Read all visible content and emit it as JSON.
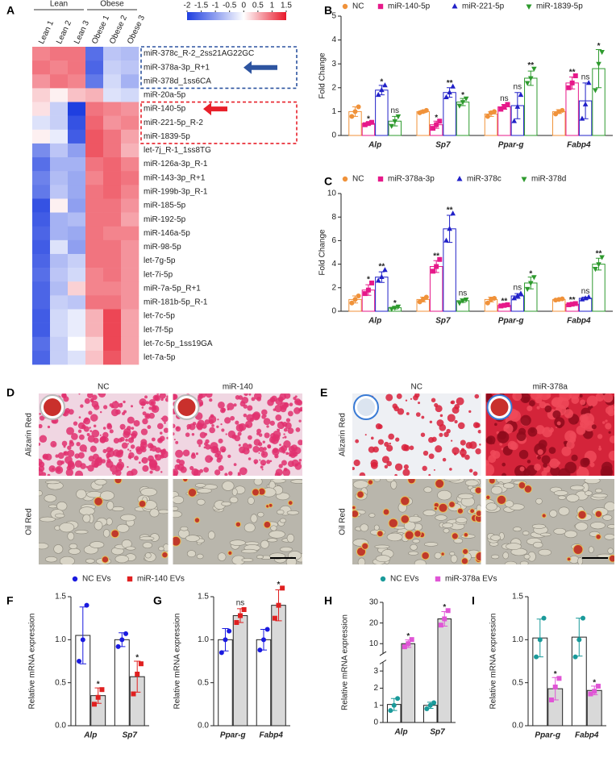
{
  "chart_data": [
    {
      "type": "heatmap",
      "panel": "A",
      "columns": [
        "Lean 1",
        "Lean 2",
        "Lean 3",
        "Obese 1",
        "Obese 2",
        "Obese 3"
      ],
      "groups": [
        {
          "name": "Lean",
          "span": [
            0,
            2
          ]
        },
        {
          "name": "Obese",
          "span": [
            3,
            5
          ]
        }
      ],
      "rows": [
        "miR-378c_R-2_2ss21AG22GC",
        "miR-378a-3p_R+1",
        "miR-378d_1ss6CA",
        "miR-20a-5p",
        "miR-140-5p",
        "miR-221-5p_R-2",
        "miR-1839-5p",
        "let-7j_R-1_1ss8TG",
        "miR-126a-3p_R-1",
        "miR-143-3p_R+1",
        "miR-199b-3p_R-1",
        "miR-185-5p",
        "miR-192-5p",
        "miR-146a-5p",
        "miR-98-5p",
        "let-7g-5p",
        "let-7i-5p",
        "miR-7a-5p_R+1",
        "miR-181b-5p_R-1",
        "let-7c-5p",
        "let-7f-5p",
        "let-7c-5p_1ss19GA",
        "let-7a-5p"
      ],
      "values": [
        [
          0.8,
          0.9,
          0.9,
          -1.5,
          -0.6,
          -0.7
        ],
        [
          0.9,
          0.8,
          0.9,
          -1.6,
          -0.5,
          -0.6
        ],
        [
          0.7,
          0.9,
          0.8,
          -1.4,
          -0.4,
          -0.8
        ],
        [
          0.3,
          0.1,
          0.4,
          0.5,
          -0.3,
          -0.4
        ],
        [
          0.2,
          -0.5,
          -2,
          0.9,
          0.8,
          0.7
        ],
        [
          -0.3,
          -0.5,
          -1.8,
          1,
          0.7,
          0.8
        ],
        [
          0.1,
          -0.2,
          -1.7,
          1.1,
          0.9,
          0.6
        ],
        [
          -1.2,
          -0.6,
          -1,
          1.1,
          0.9,
          0.5
        ],
        [
          -1.5,
          -0.8,
          -0.8,
          0.9,
          1,
          0.8
        ],
        [
          -1.3,
          -0.7,
          -0.9,
          0.8,
          1,
          0.9
        ],
        [
          -1.4,
          -0.6,
          -0.9,
          0.9,
          1,
          0.8
        ],
        [
          -1.8,
          0.1,
          -1,
          0.9,
          0.9,
          0.7
        ],
        [
          -1.7,
          -0.8,
          -0.7,
          0.9,
          0.9,
          0.6
        ],
        [
          -1.6,
          -0.8,
          -0.9,
          0.9,
          0.8,
          0.8
        ],
        [
          -1.7,
          -0.3,
          -1,
          0.9,
          0.9,
          0.7
        ],
        [
          -1.6,
          -0.7,
          -0.5,
          0.9,
          0.9,
          0.7
        ],
        [
          -1.5,
          -0.6,
          -0.4,
          0.8,
          0.9,
          0.7
        ],
        [
          -1.6,
          -0.7,
          0.3,
          0.8,
          0.8,
          0.7
        ],
        [
          -1.6,
          -0.5,
          -0.6,
          0.9,
          0.9,
          0.7
        ],
        [
          -1.7,
          -0.4,
          -0.2,
          0.5,
          1.2,
          0.6
        ],
        [
          -1.7,
          -0.4,
          -0.2,
          0.5,
          1.2,
          0.6
        ],
        [
          -1.5,
          -0.5,
          0,
          0.3,
          1.2,
          0.6
        ],
        [
          -1.6,
          -0.5,
          -0.3,
          0.4,
          1.1,
          0.6
        ]
      ],
      "clim": [
        -2,
        1.5
      ],
      "cticks": [
        -2,
        -1.5,
        -1,
        -0.5,
        0,
        0.5,
        1,
        1.5
      ],
      "colors": [
        "#1f3fe0",
        "#ffffff",
        "#e8182a"
      ],
      "boxes": [
        {
          "from": 0,
          "to": 2,
          "color": "#2d54a0"
        },
        {
          "from": 4,
          "to": 6,
          "color": "#e8202a"
        }
      ]
    },
    {
      "type": "bar",
      "panel": "B",
      "bar_style": "outline",
      "y_label": "Fold Change",
      "categories": [
        "Alp",
        "Sp7",
        "Ppar-g",
        "Fabp4"
      ],
      "ylim": [
        0,
        5
      ],
      "yticks": [
        0,
        1,
        2,
        3,
        4,
        5
      ],
      "series": [
        {
          "name": "NC",
          "color": "#f0923a",
          "marker": "circle",
          "values": [
            1.0,
            1.0,
            0.9,
            1.0
          ],
          "errors": [
            0.2,
            0.05,
            0.1,
            0.08
          ],
          "points": [
            [
              0.8,
              1.0,
              1.2
            ],
            [
              0.95,
              1.0,
              1.05
            ],
            [
              0.8,
              0.95,
              1.0
            ],
            [
              0.9,
              1.0,
              1.05
            ]
          ],
          "annotations": [
            null,
            null,
            null,
            null
          ]
        },
        {
          "name": "miR-140-5p",
          "color": "#e6198a",
          "marker": "square",
          "values": [
            0.5,
            0.45,
            1.2,
            2.2
          ],
          "errors": [
            0.05,
            0.15,
            0.1,
            0.25
          ],
          "points": [
            [
              0.45,
              0.5,
              0.55
            ],
            [
              0.3,
              0.45,
              0.6
            ],
            [
              1.1,
              1.2,
              1.3
            ],
            [
              2.0,
              2.2,
              2.5
            ]
          ],
          "annotations": [
            "*",
            "*",
            "ns",
            "**"
          ]
        },
        {
          "name": "miR-221-5p",
          "color": "#2121c8",
          "marker": "up",
          "values": [
            1.9,
            1.8,
            1.25,
            1.45
          ],
          "errors": [
            0.2,
            0.2,
            0.55,
            0.75
          ],
          "points": [
            [
              1.7,
              1.9,
              2.1
            ],
            [
              1.6,
              1.8,
              2.05
            ],
            [
              0.6,
              1.2,
              1.7
            ],
            [
              0.7,
              1.3,
              2.2
            ]
          ],
          "annotations": [
            "*",
            "**",
            "ns",
            "ns"
          ]
        },
        {
          "name": "miR-1839-5p",
          "color": "#2e9a2e",
          "marker": "down",
          "values": [
            0.6,
            1.4,
            2.4,
            2.8
          ],
          "errors": [
            0.2,
            0.15,
            0.3,
            0.8
          ],
          "points": [
            [
              0.4,
              0.6,
              0.8
            ],
            [
              1.25,
              1.4,
              1.55
            ],
            [
              2.2,
              2.4,
              2.8
            ],
            [
              1.9,
              3.0,
              3.5
            ]
          ],
          "annotations": [
            "ns",
            "*",
            "**",
            "*"
          ]
        }
      ]
    },
    {
      "type": "bar",
      "panel": "C",
      "bar_style": "outline",
      "y_label": "Fold Change",
      "categories": [
        "Alp",
        "Sp7",
        "Ppar-g",
        "Fabp4"
      ],
      "ylim": [
        0,
        10
      ],
      "yticks": [
        0,
        2,
        4,
        6,
        8,
        10
      ],
      "series": [
        {
          "name": "NC",
          "color": "#f0923a",
          "marker": "circle",
          "values": [
            1.0,
            1.0,
            1.0,
            1.0
          ],
          "errors": [
            0.3,
            0.2,
            0.2,
            0.05
          ],
          "points": [
            [
              0.7,
              1.0,
              1.3
            ],
            [
              0.8,
              1.0,
              1.2
            ],
            [
              0.7,
              1.0,
              1.1
            ],
            [
              0.95,
              1.0,
              1.05
            ]
          ],
          "annotations": [
            null,
            null,
            null,
            null
          ]
        },
        {
          "name": "miR-378a-3p",
          "color": "#e6198a",
          "marker": "square",
          "values": [
            1.8,
            3.8,
            0.5,
            0.6
          ],
          "errors": [
            0.45,
            0.5,
            0.05,
            0.05
          ],
          "points": [
            [
              1.5,
              1.8,
              2.4
            ],
            [
              3.4,
              3.8,
              4.4
            ],
            [
              0.45,
              0.5,
              0.55
            ],
            [
              0.55,
              0.6,
              0.65
            ]
          ],
          "annotations": [
            "*",
            "**",
            "**",
            "**"
          ]
        },
        {
          "name": "miR-378c",
          "color": "#2121c8",
          "marker": "up",
          "values": [
            2.9,
            7.0,
            1.3,
            1.1
          ],
          "errors": [
            0.45,
            1.15,
            0.2,
            0.1
          ],
          "points": [
            [
              2.6,
              2.9,
              3.5
            ],
            [
              6.0,
              7.0,
              8.3
            ],
            [
              1.1,
              1.3,
              1.5
            ],
            [
              1.0,
              1.1,
              1.2
            ]
          ],
          "annotations": [
            "**",
            "**",
            "ns",
            "ns"
          ]
        },
        {
          "name": "miR-378d",
          "color": "#2e9a2e",
          "marker": "down",
          "values": [
            0.3,
            0.9,
            2.4,
            4.0
          ],
          "errors": [
            0.1,
            0.15,
            0.5,
            0.5
          ],
          "points": [
            [
              0.2,
              0.3,
              0.4
            ],
            [
              0.7,
              0.9,
              1.0
            ],
            [
              1.9,
              2.4,
              2.9
            ],
            [
              3.6,
              4.0,
              4.6
            ]
          ],
          "annotations": [
            "*",
            "ns",
            "*",
            "**"
          ]
        }
      ]
    },
    {
      "type": "bar",
      "panel": "F",
      "bar_style": "filled",
      "y_label": "Relative mRNA expression",
      "categories": [
        "Alp",
        "Sp7"
      ],
      "ylim": [
        0,
        1.5
      ],
      "yticks": [
        {
          "value": 0,
          "label": "0.0"
        },
        0.5,
        {
          "value": 1,
          "label": "1.0"
        },
        1.5
      ],
      "series": [
        {
          "name": "NC EVs",
          "color": "#1a1adf",
          "fill": "#ffffff",
          "marker": "circle",
          "values": [
            1.05,
            1.0
          ],
          "errors": [
            0.33,
            0.08
          ],
          "points": [
            [
              0.75,
              1.0,
              1.4
            ],
            [
              0.92,
              1.0,
              1.07
            ]
          ],
          "annotations": [
            null,
            null
          ]
        },
        {
          "name": "miR-140 EVs",
          "color": "#e02020",
          "fill": "#d9d9d9",
          "marker": "square",
          "values": [
            0.35,
            0.57
          ],
          "errors": [
            0.09,
            0.18
          ],
          "points": [
            [
              0.25,
              0.33,
              0.42
            ],
            [
              0.37,
              0.6,
              0.72
            ]
          ],
          "annotations": [
            "*",
            "*"
          ]
        }
      ]
    },
    {
      "type": "bar",
      "panel": "G",
      "bar_style": "filled",
      "y_label": "Relative mRNA expression",
      "categories": [
        "Ppar-g",
        "Fabp4"
      ],
      "ylim": [
        0,
        1.5
      ],
      "yticks": [
        {
          "value": 0,
          "label": "0.0"
        },
        0.5,
        {
          "value": 1,
          "label": "1.0"
        },
        1.5
      ],
      "series": [
        {
          "color": "#1a1adf",
          "fill": "#ffffff",
          "marker": "circle",
          "values": [
            1.0,
            1.0
          ],
          "errors": [
            0.13,
            0.12
          ],
          "points": [
            [
              0.85,
              1.0,
              1.1
            ],
            [
              0.88,
              1.0,
              1.12
            ]
          ],
          "annotations": [
            null,
            null
          ]
        },
        {
          "color": "#e02020",
          "fill": "#d9d9d9",
          "marker": "square",
          "values": [
            1.28,
            1.4
          ],
          "errors": [
            0.08,
            0.18
          ],
          "points": [
            [
              1.2,
              1.28,
              1.35
            ],
            [
              1.25,
              1.4,
              1.6
            ]
          ],
          "annotations": [
            "ns",
            "*"
          ]
        }
      ]
    },
    {
      "type": "bar",
      "panel": "H",
      "bar_style": "filled",
      "y_label": "Relative mRNA expression",
      "categories": [
        "Alp",
        "Sp7"
      ],
      "ylim": [
        0,
        30
      ],
      "ybreak": [
        3.5,
        5
      ],
      "yticks": [
        0,
        1,
        2,
        3,
        10,
        20,
        30
      ],
      "series": [
        {
          "name": "NC EVs",
          "color": "#1a9a9a",
          "fill": "#ffffff",
          "marker": "circle",
          "values": [
            1.05,
            1.0
          ],
          "errors": [
            0.35,
            0.18
          ],
          "points": [
            [
              0.7,
              1.0,
              1.4
            ],
            [
              0.8,
              1.0,
              1.15
            ]
          ],
          "annotations": [
            null,
            null
          ]
        },
        {
          "name": "miR-378a EVs",
          "color": "#e055d6",
          "fill": "#d9d9d9",
          "marker": "square",
          "values": [
            10,
            22
          ],
          "errors": [
            1.8,
            3.5
          ],
          "points": [
            [
              8.5,
              10,
              12
            ],
            [
              19,
              22,
              26
            ]
          ],
          "annotations": [
            "*",
            "*"
          ]
        }
      ]
    },
    {
      "type": "bar",
      "panel": "I",
      "bar_style": "filled",
      "y_label": "Relative mRNA expression",
      "categories": [
        "Ppar-g",
        "Fabp4"
      ],
      "ylim": [
        0,
        1.5
      ],
      "yticks": [
        {
          "value": 0,
          "label": "0.0"
        },
        0.5,
        {
          "value": 1,
          "label": "1.0"
        },
        1.5
      ],
      "series": [
        {
          "color": "#1a9a9a",
          "fill": "#ffffff",
          "marker": "circle",
          "values": [
            1.02,
            1.03
          ],
          "errors": [
            0.22,
            0.22
          ],
          "points": [
            [
              0.8,
              1.0,
              1.25
            ],
            [
              0.8,
              1.0,
              1.25
            ]
          ],
          "annotations": [
            null,
            null
          ]
        },
        {
          "color": "#e055d6",
          "fill": "#d9d9d9",
          "marker": "square",
          "values": [
            0.43,
            0.41
          ],
          "errors": [
            0.13,
            0.05
          ],
          "points": [
            [
              0.3,
              0.45,
              0.55
            ],
            [
              0.37,
              0.4,
              0.46
            ]
          ],
          "annotations": [
            "*",
            "*"
          ]
        }
      ]
    }
  ],
  "image_panels": [
    {
      "panel": "D",
      "columns": [
        "NC",
        "miR-140"
      ],
      "rows": [
        "Alizarin Red",
        "Oil Red"
      ]
    },
    {
      "panel": "E",
      "columns": [
        "NC",
        "miR-378a"
      ],
      "rows": [
        "Alizarin Red",
        "Oil Red"
      ]
    }
  ]
}
